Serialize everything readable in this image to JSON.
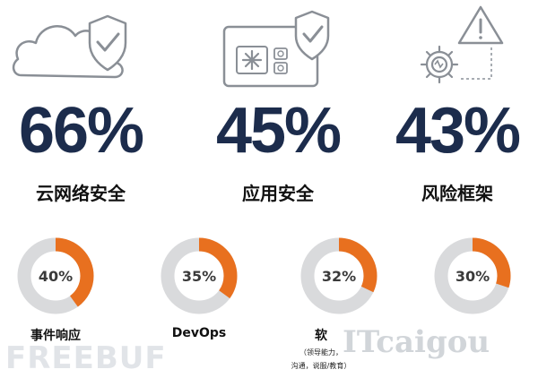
{
  "chart_data": {
    "type": "infographic",
    "stats": [
      {
        "value": "66%",
        "label": "云网络安全",
        "icon": "cloud-shield-icon"
      },
      {
        "value": "45%",
        "label": "应用安全",
        "icon": "app-window-shield-icon"
      },
      {
        "value": "43%",
        "label": "风险框架",
        "icon": "gear-warning-icon"
      }
    ],
    "donuts": [
      {
        "value": 40,
        "text": "40%",
        "label": "事件响应",
        "sublabel": []
      },
      {
        "value": 35,
        "text": "35%",
        "label": "DevOps",
        "sublabel": []
      },
      {
        "value": 32,
        "text": "32%",
        "label": "软",
        "sublabel": [
          "（领导能力，",
          "沟通，说服/教育）"
        ]
      },
      {
        "value": 30,
        "text": "30%",
        "label": "",
        "sublabel": []
      }
    ],
    "colors": {
      "accent": "#e8701f",
      "track": "#d9dadc",
      "number": "#1c2c4c",
      "icon": "#8a8f96"
    }
  },
  "watermarks": {
    "left": "FREEBUF",
    "right": "ITcaigou"
  }
}
